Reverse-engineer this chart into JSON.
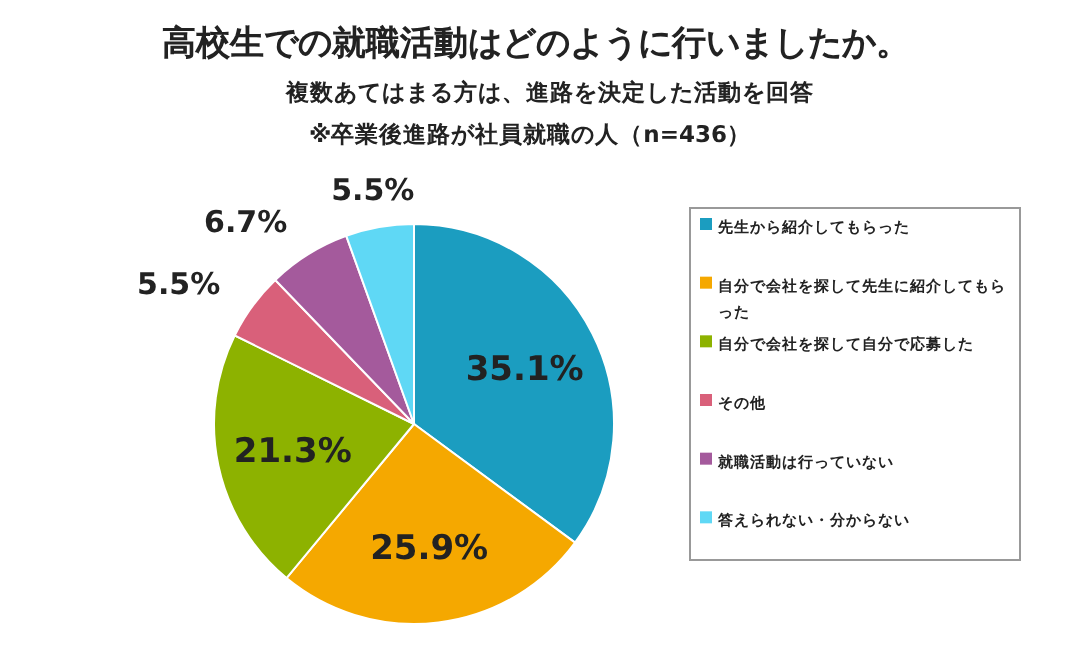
{
  "chart_data": {
    "type": "pie",
    "title": "高校生での就職活動はどのように行いましたか。",
    "subtitle": "複数あてはまる方は、進路を決定した活動を回答",
    "annotations": [
      "※卒業後進路が社員就職の人（n=436）"
    ],
    "categories": [
      "先生から紹介してもらった",
      "自分で会社を探して先生に紹介してもらった",
      "自分で会社を探して自分で応募した",
      "その他",
      "就職活動は行っていない",
      "答えられない・分からない"
    ],
    "values": [
      35.1,
      25.9,
      21.3,
      5.5,
      6.7,
      5.5
    ],
    "colors": [
      "#1b9dc0",
      "#f5a800",
      "#8db200",
      "#d9607a",
      "#a45a9c",
      "#5fd8f5"
    ],
    "value_labels": [
      "35.1%",
      "25.9%",
      "21.3%",
      "5.5%",
      "6.7%",
      "5.5%"
    ],
    "legend": "right"
  }
}
